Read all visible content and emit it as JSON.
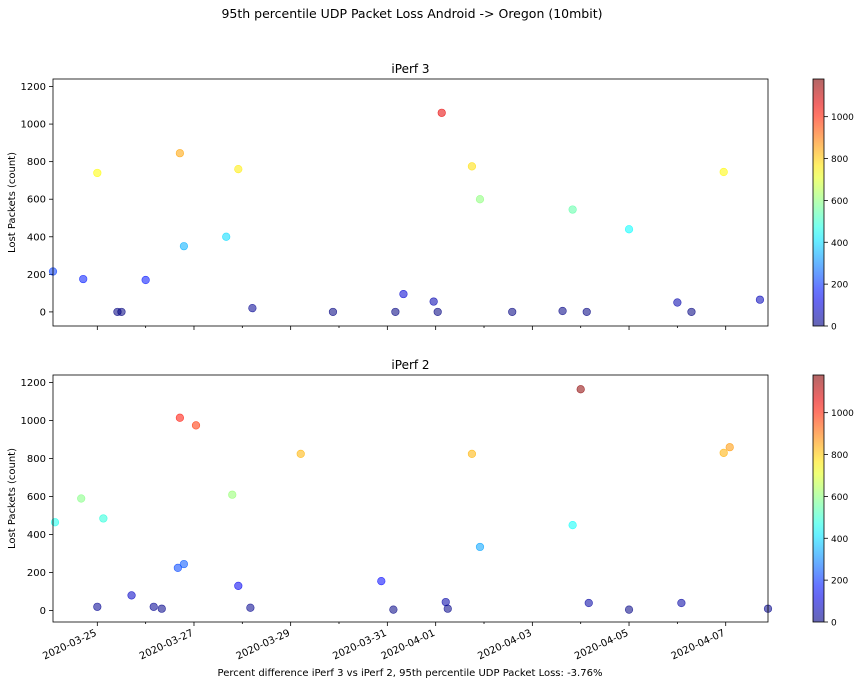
{
  "figure": {
    "suptitle": "95th percentile UDP Packet Loss Android -> Oregon (10mbit)",
    "footer": "Percent difference iPerf 3 vs iPerf 2, 95th percentile UDP Packet Loss: -3.76%"
  },
  "colorbar": {
    "colormap": "jet",
    "range": [
      0,
      1180
    ],
    "ticks": [
      "0",
      "200",
      "400",
      "600",
      "800",
      "1000"
    ]
  },
  "chart_data": [
    {
      "type": "scatter",
      "title": "iPerf 3",
      "ylabel": "Lost Packets (count)",
      "xlim": [
        "2020-03-24 02:00",
        "2020-04-07 21:00"
      ],
      "ylim": [
        -75,
        1240
      ],
      "yticks": [
        "0",
        "200",
        "400",
        "600",
        "800",
        "1000",
        "1200"
      ],
      "xtick_labels_visible": false,
      "points": [
        {
          "x": "2020-03-24 02:00",
          "y": 215
        },
        {
          "x": "2020-03-24 17:00",
          "y": 175
        },
        {
          "x": "2020-03-25 00:00",
          "y": 740
        },
        {
          "x": "2020-03-25 10:00",
          "y": 0
        },
        {
          "x": "2020-03-25 12:00",
          "y": 0
        },
        {
          "x": "2020-03-26 00:00",
          "y": 170
        },
        {
          "x": "2020-03-26 17:00",
          "y": 845
        },
        {
          "x": "2020-03-26 19:00",
          "y": 350
        },
        {
          "x": "2020-03-27 16:00",
          "y": 400
        },
        {
          "x": "2020-03-27 22:00",
          "y": 760
        },
        {
          "x": "2020-03-28 05:00",
          "y": 20
        },
        {
          "x": "2020-03-29 21:00",
          "y": 0
        },
        {
          "x": "2020-03-31 04:00",
          "y": 0
        },
        {
          "x": "2020-03-31 08:00",
          "y": 95
        },
        {
          "x": "2020-03-31 23:00",
          "y": 55
        },
        {
          "x": "2020-04-01 01:00",
          "y": 0
        },
        {
          "x": "2020-04-01 03:00",
          "y": 1060
        },
        {
          "x": "2020-04-01 18:00",
          "y": 775
        },
        {
          "x": "2020-04-01 22:00",
          "y": 600
        },
        {
          "x": "2020-04-02 14:00",
          "y": 0
        },
        {
          "x": "2020-04-03 15:00",
          "y": 5
        },
        {
          "x": "2020-04-03 20:00",
          "y": 545
        },
        {
          "x": "2020-04-04 03:00",
          "y": 0
        },
        {
          "x": "2020-04-05 00:00",
          "y": 440
        },
        {
          "x": "2020-04-06 00:00",
          "y": 50
        },
        {
          "x": "2020-04-06 07:00",
          "y": 0
        },
        {
          "x": "2020-04-06 23:00",
          "y": 745
        },
        {
          "x": "2020-04-07 17:00",
          "y": 65
        }
      ]
    },
    {
      "type": "scatter",
      "title": "iPerf 2",
      "ylabel": "Lost Packets (count)",
      "xlim": [
        "2020-03-24 02:00",
        "2020-04-07 21:00"
      ],
      "ylim": [
        -60,
        1240
      ],
      "yticks": [
        "0",
        "200",
        "400",
        "600",
        "800",
        "1000",
        "1200"
      ],
      "xticks": [
        "2020-03-25",
        "2020-03-27",
        "2020-03-29",
        "2020-03-31",
        "2020-04-01",
        "2020-04-03",
        "2020-04-05",
        "2020-04-07"
      ],
      "points": [
        {
          "x": "2020-03-24 03:00",
          "y": 465
        },
        {
          "x": "2020-03-24 16:00",
          "y": 590
        },
        {
          "x": "2020-03-25 00:00",
          "y": 20
        },
        {
          "x": "2020-03-25 03:00",
          "y": 485
        },
        {
          "x": "2020-03-25 17:00",
          "y": 80
        },
        {
          "x": "2020-03-26 04:00",
          "y": 20
        },
        {
          "x": "2020-03-26 08:00",
          "y": 10
        },
        {
          "x": "2020-03-26 16:00",
          "y": 225
        },
        {
          "x": "2020-03-26 17:00",
          "y": 1015
        },
        {
          "x": "2020-03-26 19:00",
          "y": 245
        },
        {
          "x": "2020-03-27 01:00",
          "y": 975
        },
        {
          "x": "2020-03-27 19:00",
          "y": 610
        },
        {
          "x": "2020-03-27 22:00",
          "y": 130
        },
        {
          "x": "2020-03-28 04:00",
          "y": 15
        },
        {
          "x": "2020-03-29 05:00",
          "y": 825
        },
        {
          "x": "2020-03-30 21:00",
          "y": 155
        },
        {
          "x": "2020-03-31 03:00",
          "y": 5
        },
        {
          "x": "2020-04-01 05:00",
          "y": 45
        },
        {
          "x": "2020-04-01 06:00",
          "y": 10
        },
        {
          "x": "2020-04-01 18:00",
          "y": 825
        },
        {
          "x": "2020-04-01 22:00",
          "y": 335
        },
        {
          "x": "2020-04-03 20:00",
          "y": 450
        },
        {
          "x": "2020-04-04 00:00",
          "y": 1165
        },
        {
          "x": "2020-04-04 04:00",
          "y": 40
        },
        {
          "x": "2020-04-05 00:00",
          "y": 5
        },
        {
          "x": "2020-04-06 02:00",
          "y": 40
        },
        {
          "x": "2020-04-06 23:00",
          "y": 830
        },
        {
          "x": "2020-04-07 02:00",
          "y": 860
        },
        {
          "x": "2020-04-07 21:00",
          "y": 10
        }
      ]
    }
  ]
}
